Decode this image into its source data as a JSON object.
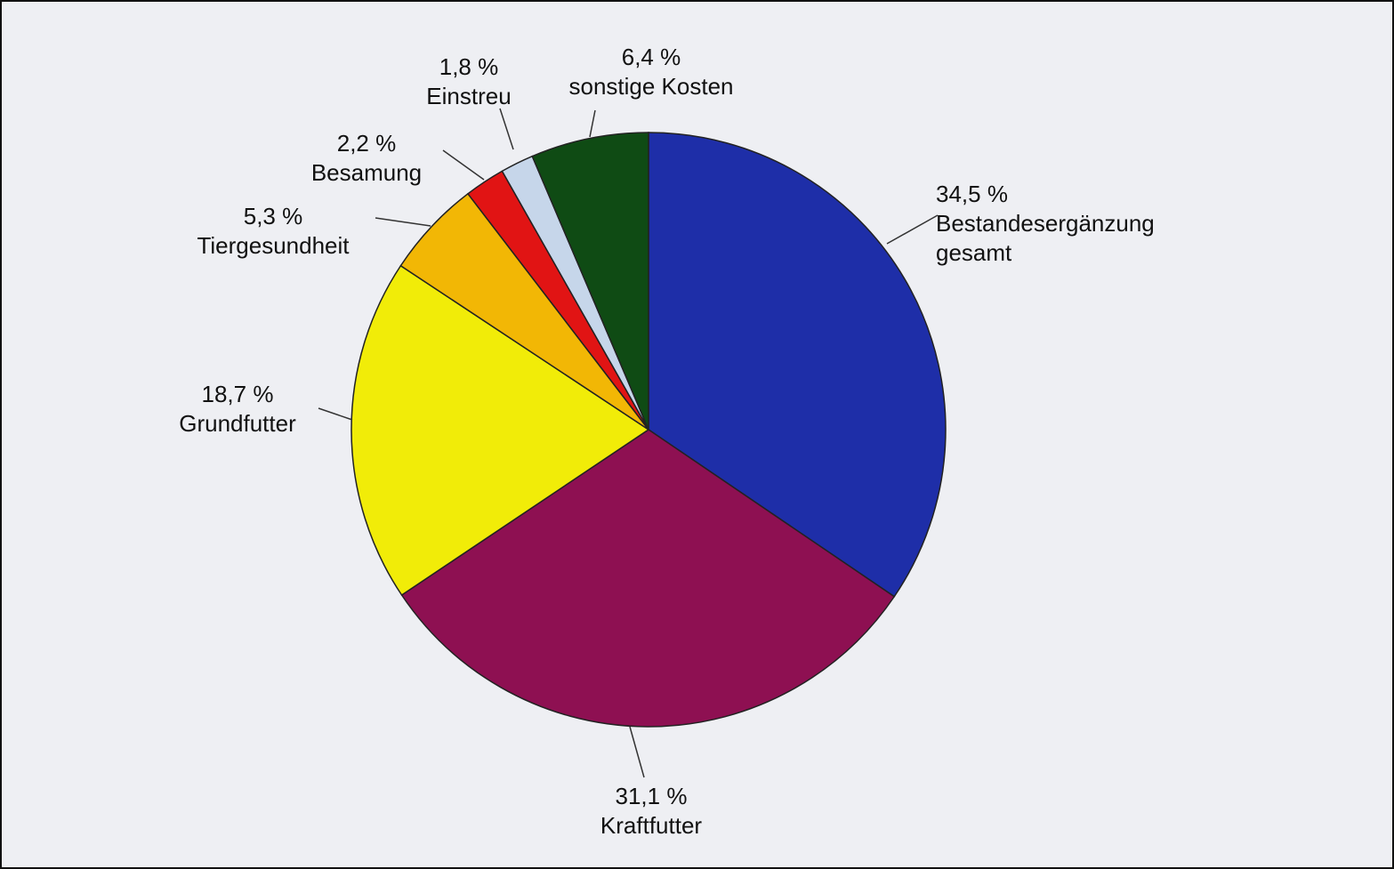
{
  "chart_data": {
    "type": "pie",
    "categories": [
      "Bestandesergänzung gesamt",
      "Kraftfutter",
      "Grundfutter",
      "Tiergesundheit",
      "Besamung",
      "Einstreu",
      "sonstige Kosten"
    ],
    "values": [
      34.5,
      31.1,
      18.7,
      5.3,
      2.2,
      1.8,
      6.4
    ],
    "value_labels": [
      "34,5 %",
      "31,1 %",
      "18,7 %",
      "5,3 %",
      "2,2 %",
      "1,8 %",
      "6,4 %"
    ],
    "colors": [
      "#1e2ea8",
      "#8e1052",
      "#f1ec08",
      "#f2b705",
      "#e11414",
      "#c6d6ea",
      "#0f4b14"
    ]
  }
}
